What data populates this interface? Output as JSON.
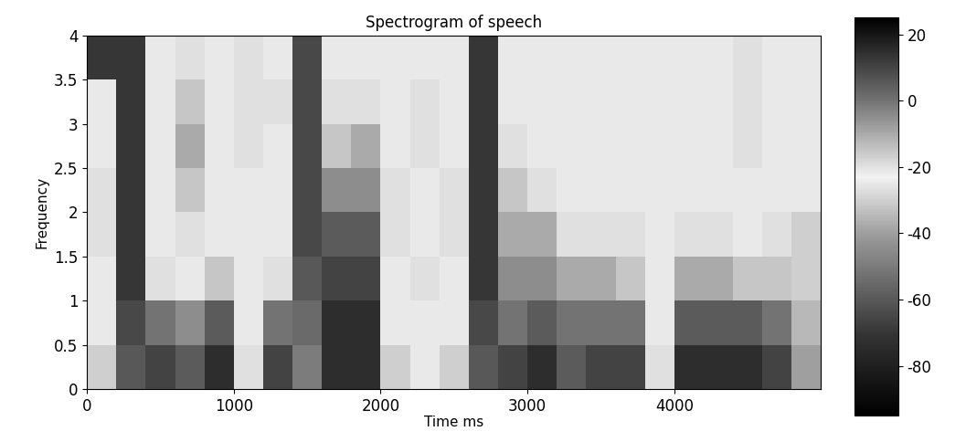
{
  "chart_data": {
    "type": "heatmap",
    "title": "Spectrogram of speech",
    "x_label": "Time ms",
    "y_label": "Frequency",
    "x": [
      0,
      200,
      400,
      600,
      800,
      1000,
      1200,
      1400,
      1600,
      1800,
      2000,
      2200,
      2400,
      2600,
      2800,
      3000,
      3200,
      3400,
      3600,
      3800,
      4000,
      4200,
      4400,
      4600,
      4800,
      5000
    ],
    "y": [
      0,
      0.5,
      1,
      1.5,
      2,
      2.5,
      3,
      3.5,
      4
    ],
    "cells": [
      [
        -30,
        -60,
        10,
        5,
        15,
        -20,
        10,
        -50,
        15,
        15,
        -30,
        -25,
        -30,
        -60,
        10,
        15,
        5,
        10,
        10,
        -20,
        15,
        15,
        15,
        10,
        -40
      ],
      [
        -25,
        -65,
        0,
        -5,
        5,
        -25,
        0,
        -55,
        15,
        15,
        -25,
        -25,
        -25,
        -65,
        0,
        5,
        0,
        0,
        0,
        -25,
        5,
        5,
        5,
        0,
        -35
      ],
      [
        -25,
        -70,
        -20,
        -25,
        -15,
        -25,
        -20,
        -60,
        10,
        10,
        -25,
        -20,
        -25,
        -70,
        -5,
        -5,
        -10,
        -10,
        -15,
        -25,
        -10,
        -10,
        -15,
        -15,
        -30
      ],
      [
        -20,
        -70,
        -25,
        -20,
        -25,
        -25,
        -25,
        -65,
        5,
        5,
        -20,
        -25,
        -20,
        -70,
        -10,
        -10,
        -20,
        -20,
        -20,
        -25,
        -20,
        -20,
        -25,
        -20,
        -30
      ],
      [
        -20,
        -70,
        -25,
        -15,
        -25,
        -25,
        -25,
        -65,
        -5,
        -5,
        -20,
        -25,
        -20,
        -70,
        -15,
        -20,
        -25,
        -25,
        -25,
        -25,
        -25,
        -25,
        -25,
        -25,
        -25
      ],
      [
        -25,
        -70,
        -25,
        -10,
        -25,
        -20,
        -25,
        -65,
        -15,
        -10,
        -25,
        -20,
        -25,
        -70,
        -20,
        -25,
        -25,
        -25,
        -25,
        -25,
        -25,
        -25,
        -20,
        -25,
        -25
      ],
      [
        -25,
        -70,
        -25,
        -15,
        -25,
        -20,
        -20,
        -65,
        -20,
        -20,
        -25,
        -20,
        -25,
        -70,
        -25,
        -25,
        -25,
        -25,
        -25,
        -25,
        -25,
        -25,
        -20,
        -25,
        -25
      ],
      [
        -70,
        -70,
        -25,
        -20,
        -25,
        -20,
        -25,
        -65,
        -25,
        -25,
        -25,
        -25,
        -25,
        -70,
        -25,
        -25,
        -25,
        -25,
        -25,
        -25,
        -25,
        -25,
        -20,
        -25,
        -25
      ]
    ],
    "xlim": [
      0,
      5000
    ],
    "ylim": [
      0,
      4
    ],
    "xticks": [
      0,
      1000,
      2000,
      3000,
      4000
    ],
    "yticks": [
      0,
      0.5,
      1,
      1.5,
      2,
      2.5,
      3,
      3.5,
      4
    ],
    "colorbar_range": [
      -95,
      25
    ],
    "colorbar_ticks": [
      20,
      0,
      -20,
      -40,
      -60,
      -80
    ]
  }
}
